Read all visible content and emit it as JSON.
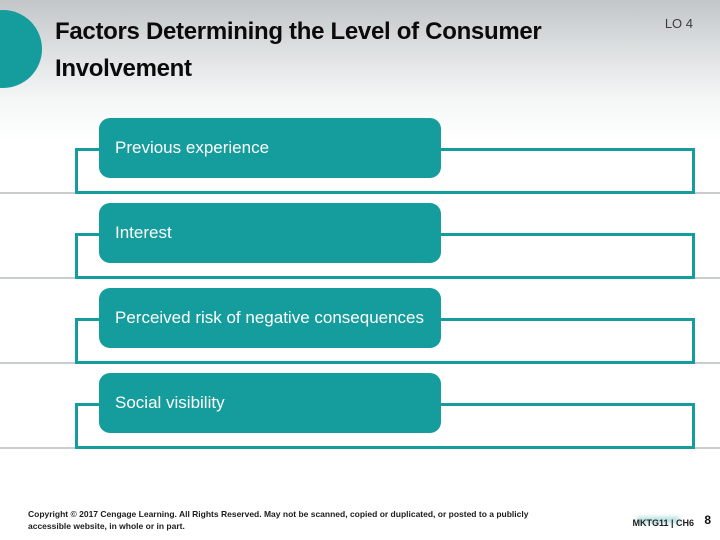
{
  "slide": {
    "lo_badge": "LO 4",
    "title": "Factors Determining the Level of Consumer Involvement",
    "factors": [
      {
        "label": "Previous experience"
      },
      {
        "label": "Interest"
      },
      {
        "label": "Perceived risk of negative consequences"
      },
      {
        "label": "Social visibility"
      }
    ],
    "footer": {
      "copyright": "Copyright © 2017 Cengage Learning. All Rights Reserved. May not be scanned, copied or duplicated, or posted to a publicly accessible website, in whole or in part.",
      "course_code": "MKTG11 | CH6",
      "page_number": "8"
    },
    "colors": {
      "accent_teal": "#159c9c",
      "header_gradient_top": "#c2c6c8",
      "rule_line": "#c9cdce"
    }
  }
}
